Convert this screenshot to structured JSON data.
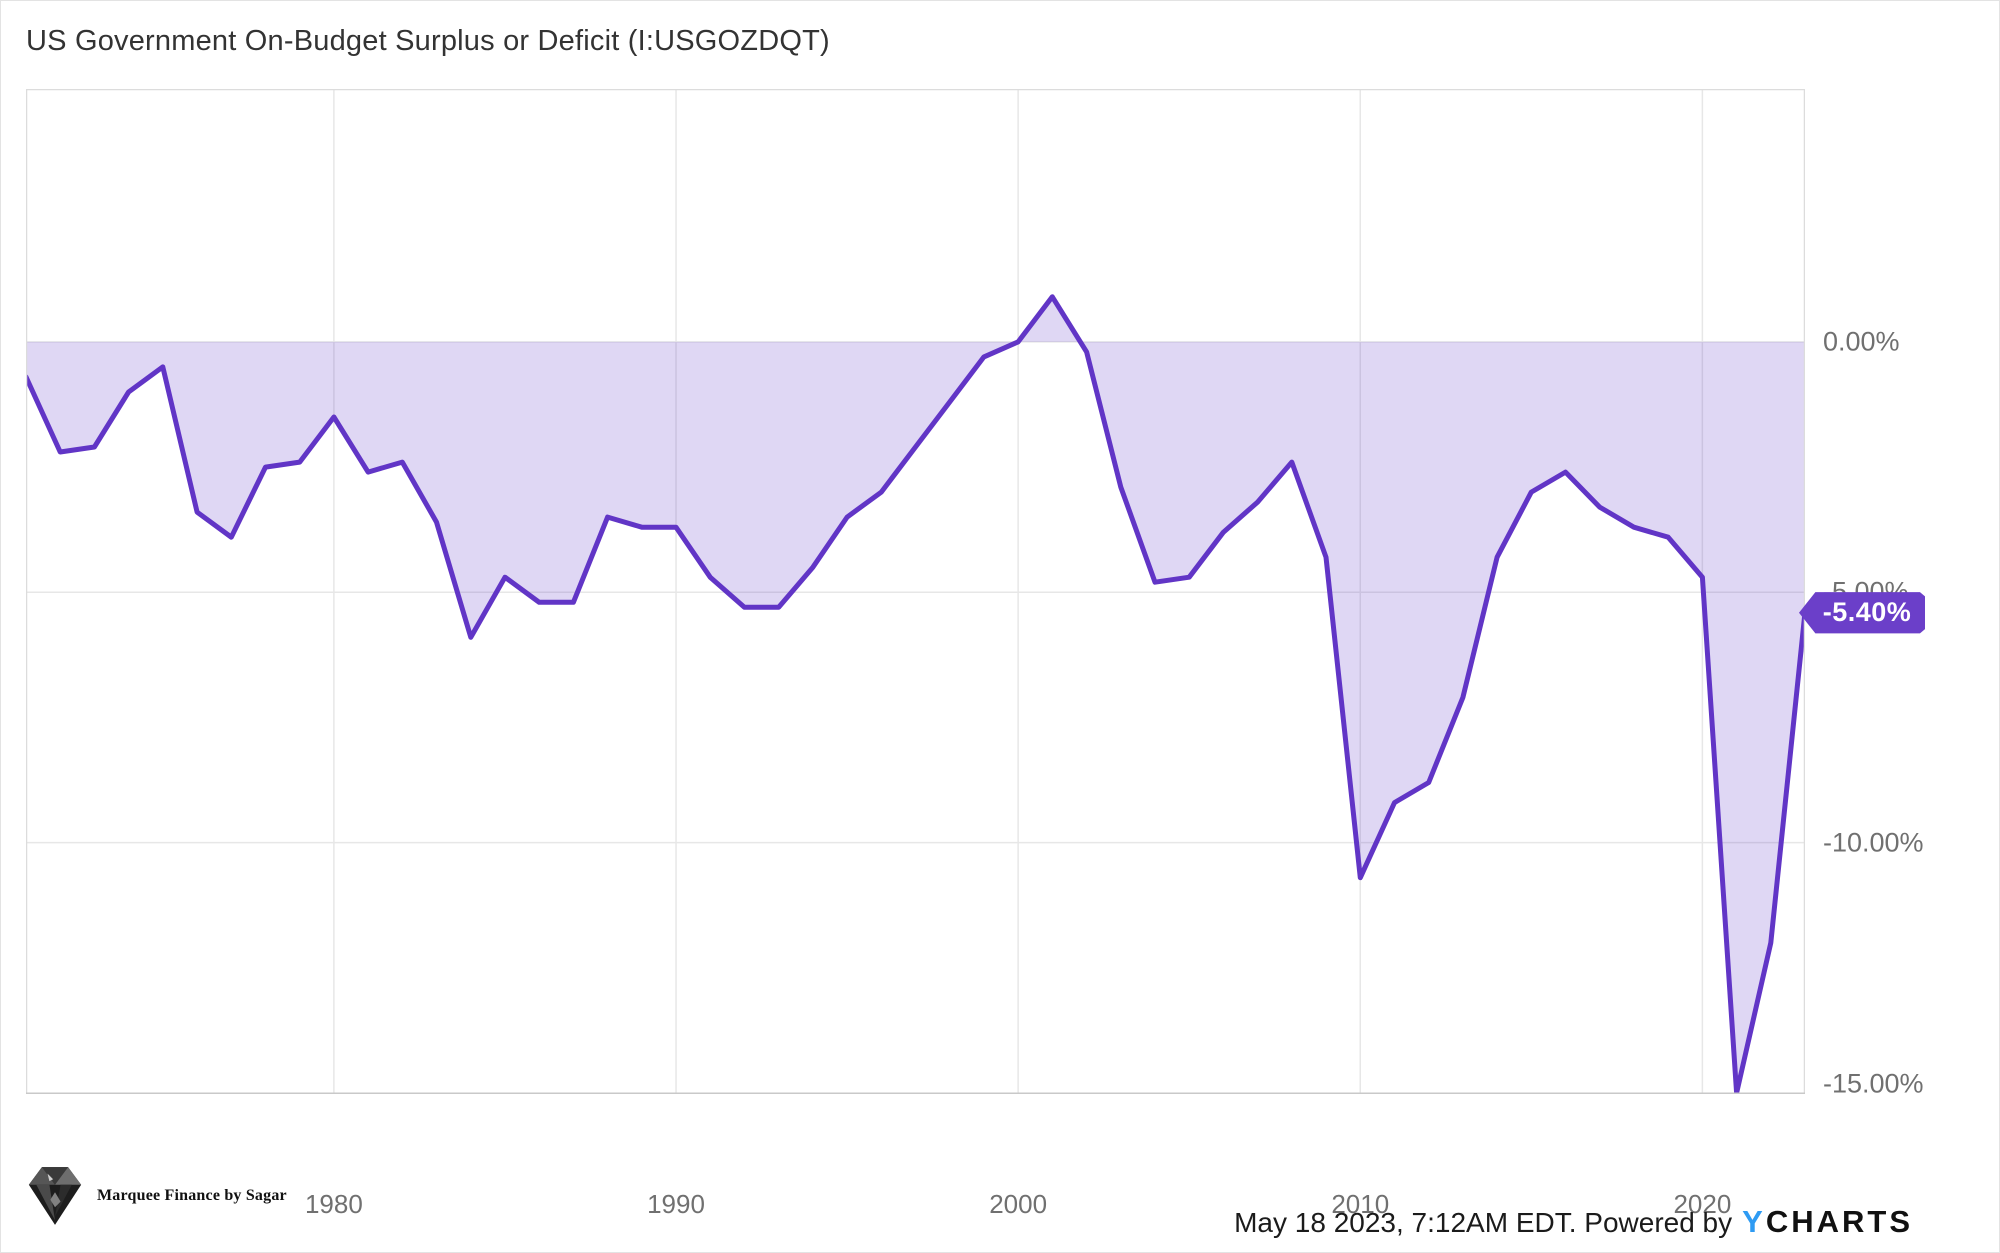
{
  "title": "US Government On-Budget Surplus or Deficit (I:USGOZDQT)",
  "chart_data": {
    "type": "area",
    "title": "US Government On-Budget Surplus or Deficit (I:USGOZDQT)",
    "series_name": "US Government On-Budget Surplus or Deficit (% of GDP)",
    "x": [
      1971,
      1972,
      1973,
      1974,
      1975,
      1976,
      1977,
      1978,
      1979,
      1980,
      1981,
      1982,
      1983,
      1984,
      1985,
      1986,
      1987,
      1988,
      1989,
      1990,
      1991,
      1992,
      1993,
      1994,
      1995,
      1996,
      1997,
      1998,
      1999,
      2000,
      2001,
      2002,
      2003,
      2004,
      2005,
      2006,
      2007,
      2008,
      2009,
      2010,
      2011,
      2012,
      2013,
      2014,
      2015,
      2016,
      2017,
      2018,
      2019,
      2020,
      2021,
      2022,
      2023
    ],
    "values": [
      -0.7,
      -2.2,
      -2.1,
      -1.0,
      -0.5,
      -3.4,
      -3.9,
      -2.5,
      -2.4,
      -1.5,
      -2.6,
      -2.4,
      -3.6,
      -5.9,
      -4.7,
      -5.2,
      -5.2,
      -3.5,
      -3.7,
      -3.7,
      -4.7,
      -5.3,
      -5.3,
      -4.5,
      -3.5,
      -3.0,
      -2.1,
      -1.2,
      -0.3,
      0.0,
      0.9,
      -0.2,
      -2.9,
      -4.8,
      -4.7,
      -3.8,
      -3.2,
      -2.4,
      -4.3,
      -10.7,
      -9.2,
      -8.8,
      -7.1,
      -4.3,
      -3.0,
      -2.6,
      -3.3,
      -3.7,
      -3.9,
      -4.7,
      -15.0,
      -12.0,
      -5.4
    ],
    "last_value": -5.4,
    "xlabel": "",
    "ylabel": "",
    "ylim": [
      -15.02,
      5.05
    ],
    "grid": true,
    "legend_position": "none",
    "x_ticks": [
      1980,
      1990,
      2000,
      2010,
      2020
    ],
    "x_tick_labels": [
      "1980",
      "1990",
      "2000",
      "2010",
      "2020"
    ],
    "y_ticks": [
      {
        "value": 0,
        "label": "0.00%"
      },
      {
        "value": -5,
        "label": "-5.00%"
      },
      {
        "value": -10,
        "label": "-10.00%"
      },
      {
        "value": -15,
        "label": "-15.00%"
      }
    ],
    "line_color": "#6135c6",
    "fill_color": "rgba(97,53,198,0.20)",
    "grid_color": "#e7e7e7",
    "frame_color": "#dcdcdc"
  },
  "badge": {
    "label": "-5.40%",
    "color": "#6b3fc9"
  },
  "footer": {
    "brand_left": "Marquee Finance by Sagar",
    "timestamp": "May 18 2023, 7:12AM EDT. Powered by",
    "ycharts_y": "Y",
    "ycharts_rest": "CHARTS"
  }
}
